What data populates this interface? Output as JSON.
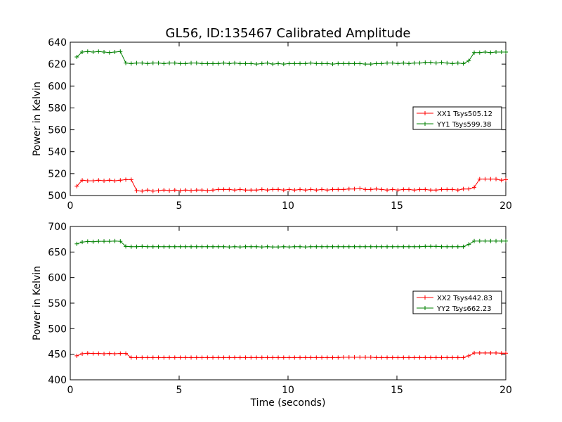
{
  "figure": {
    "title": "GL56, ID:135467 Calibrated Amplitude",
    "xlabel": "Time (seconds)"
  },
  "chart_data": [
    {
      "type": "line",
      "title": "GL56, ID:135467 Calibrated Amplitude",
      "xlabel": "",
      "ylabel": "Power in Kelvin",
      "xlim": [
        0,
        20
      ],
      "ylim": [
        500,
        640
      ],
      "xticks": [
        "0",
        "5",
        "10",
        "15",
        "20"
      ],
      "yticks": [
        "500",
        "520",
        "540",
        "560",
        "580",
        "600",
        "620",
        "640"
      ],
      "grid": false,
      "legend_position": "right",
      "x": [
        0.3,
        0.55,
        0.8,
        1.05,
        1.3,
        1.55,
        1.8,
        2.05,
        2.3,
        2.55,
        2.8,
        3.05,
        3.3,
        3.55,
        3.8,
        4.05,
        4.3,
        4.55,
        4.8,
        5.05,
        5.3,
        5.55,
        5.8,
        6.05,
        6.3,
        6.55,
        6.8,
        7.05,
        7.3,
        7.55,
        7.8,
        8.05,
        8.3,
        8.55,
        8.8,
        9.05,
        9.3,
        9.55,
        9.8,
        10.05,
        10.3,
        10.55,
        10.8,
        11.05,
        11.3,
        11.55,
        11.8,
        12.05,
        12.3,
        12.55,
        12.8,
        13.05,
        13.3,
        13.55,
        13.8,
        14.05,
        14.3,
        14.55,
        14.8,
        15.05,
        15.3,
        15.55,
        15.8,
        16.05,
        16.3,
        16.55,
        16.8,
        17.05,
        17.3,
        17.55,
        17.8,
        18.05,
        18.3,
        18.55,
        18.8,
        19.05,
        19.3,
        19.55,
        19.8,
        20.0
      ],
      "series": [
        {
          "name": "XX1 Tsys505.12",
          "color": "#ff0000",
          "values": [
            508.5,
            514,
            513.5,
            513.5,
            514,
            513.5,
            514,
            513.5,
            514,
            514.5,
            514.5,
            504.5,
            504,
            505,
            504,
            504.5,
            505,
            504.5,
            505,
            504.5,
            505,
            504.5,
            505,
            505,
            504.5,
            505,
            505.5,
            505.5,
            505.5,
            505,
            505.5,
            505,
            505,
            505,
            505.5,
            505,
            505.5,
            505.5,
            505,
            505.5,
            505,
            505.5,
            505,
            505.5,
            505,
            505.5,
            505,
            505.5,
            505.5,
            505.5,
            506,
            506,
            506.5,
            505.5,
            505.5,
            506,
            505.5,
            505,
            505.5,
            505,
            505.5,
            505.5,
            505,
            505.5,
            505.5,
            505,
            505,
            505.5,
            505.5,
            505.5,
            505,
            506,
            506,
            507.5,
            515,
            515,
            515,
            515,
            514,
            514.5
          ]
        },
        {
          "name": "YY1 Tsys599.38",
          "color": "#008000",
          "values": [
            626.5,
            631,
            631.5,
            631,
            631.5,
            631,
            630.5,
            631,
            631.5,
            621,
            620.5,
            621,
            621,
            620.5,
            621,
            621,
            620.5,
            621,
            621,
            620.5,
            620.5,
            621,
            621,
            620.5,
            620.5,
            620.5,
            620.5,
            621,
            620.5,
            621,
            620.5,
            620.5,
            620.5,
            620,
            620.5,
            621,
            620,
            620.5,
            620,
            620.5,
            620.5,
            620.5,
            620.5,
            621,
            620.5,
            620.5,
            620.5,
            620,
            620.5,
            620.5,
            620.5,
            620.5,
            620.5,
            620,
            620,
            620.5,
            620.5,
            621,
            621,
            620.5,
            621,
            620.5,
            621,
            621,
            621.5,
            621.5,
            621,
            621.5,
            621,
            620.5,
            621,
            620.5,
            623,
            630.5,
            630.5,
            631,
            630.5,
            631,
            631,
            631
          ]
        }
      ]
    },
    {
      "type": "line",
      "title": "",
      "xlabel": "Time (seconds)",
      "ylabel": "Power in Kelvin",
      "xlim": [
        0,
        20
      ],
      "ylim": [
        400,
        700
      ],
      "xticks": [
        "0",
        "5",
        "10",
        "15",
        "20"
      ],
      "yticks": [
        "400",
        "450",
        "500",
        "550",
        "600",
        "650",
        "700"
      ],
      "grid": false,
      "legend_position": "right",
      "x": [
        0.3,
        0.55,
        0.8,
        1.05,
        1.3,
        1.55,
        1.8,
        2.05,
        2.3,
        2.55,
        2.8,
        3.05,
        3.3,
        3.55,
        3.8,
        4.05,
        4.3,
        4.55,
        4.8,
        5.05,
        5.3,
        5.55,
        5.8,
        6.05,
        6.3,
        6.55,
        6.8,
        7.05,
        7.3,
        7.55,
        7.8,
        8.05,
        8.3,
        8.55,
        8.8,
        9.05,
        9.3,
        9.55,
        9.8,
        10.05,
        10.3,
        10.55,
        10.8,
        11.05,
        11.3,
        11.55,
        11.8,
        12.05,
        12.3,
        12.55,
        12.8,
        13.05,
        13.3,
        13.55,
        13.8,
        14.05,
        14.3,
        14.55,
        14.8,
        15.05,
        15.3,
        15.55,
        15.8,
        16.05,
        16.3,
        16.55,
        16.8,
        17.05,
        17.3,
        17.55,
        17.8,
        18.05,
        18.3,
        18.55,
        18.8,
        19.05,
        19.3,
        19.55,
        19.8,
        20.0
      ],
      "series": [
        {
          "name": "XX2 Tsys442.83",
          "color": "#ff0000",
          "values": [
            447,
            451,
            452,
            451.5,
            451.5,
            451,
            451.5,
            451,
            451.5,
            451.5,
            443.5,
            443.5,
            443.5,
            443.5,
            443.5,
            443.5,
            443.5,
            443.5,
            443.5,
            443.5,
            443.5,
            443.5,
            443.5,
            443.5,
            443.5,
            443.5,
            443.5,
            443.5,
            443.5,
            443.5,
            443.5,
            443.5,
            443.5,
            443.5,
            443.5,
            443.5,
            443.5,
            443.5,
            443.5,
            443.5,
            443.5,
            443.5,
            443.5,
            443.5,
            443.5,
            443.5,
            443.5,
            443.5,
            443.5,
            444,
            444,
            444,
            444,
            444,
            444,
            443.5,
            443.5,
            443.5,
            443.5,
            443.5,
            443.5,
            443.5,
            443.5,
            443.5,
            443.5,
            443.5,
            443.5,
            443.5,
            443.5,
            443.5,
            443.5,
            443.5,
            447,
            452.5,
            452.5,
            452.5,
            452.5,
            452.5,
            452,
            452
          ]
        },
        {
          "name": "YY2 Tsys662.23",
          "color": "#008000",
          "values": [
            666,
            669.5,
            670.5,
            670,
            671,
            671,
            671,
            671.5,
            671,
            661,
            660.5,
            660.5,
            661,
            660.5,
            660.5,
            660.5,
            660.5,
            660.5,
            660.5,
            660.5,
            660.5,
            660.5,
            660.5,
            660.5,
            660.5,
            660.5,
            660.5,
            660.5,
            660,
            660.5,
            660,
            660.5,
            660.5,
            660.5,
            660,
            660.5,
            660,
            660,
            660.5,
            660,
            660.5,
            660.5,
            660,
            660.5,
            660.5,
            660.5,
            660.5,
            660.5,
            660.5,
            660.5,
            660.5,
            660.5,
            660.5,
            660.5,
            660.5,
            660.5,
            660.5,
            660.5,
            660.5,
            660.5,
            660.5,
            660.5,
            660.5,
            660.5,
            661,
            661,
            661,
            660.5,
            660.5,
            660.5,
            660.5,
            660.5,
            665,
            671.5,
            671.5,
            671.5,
            671.5,
            671.5,
            671.5,
            671.5
          ]
        }
      ]
    }
  ]
}
